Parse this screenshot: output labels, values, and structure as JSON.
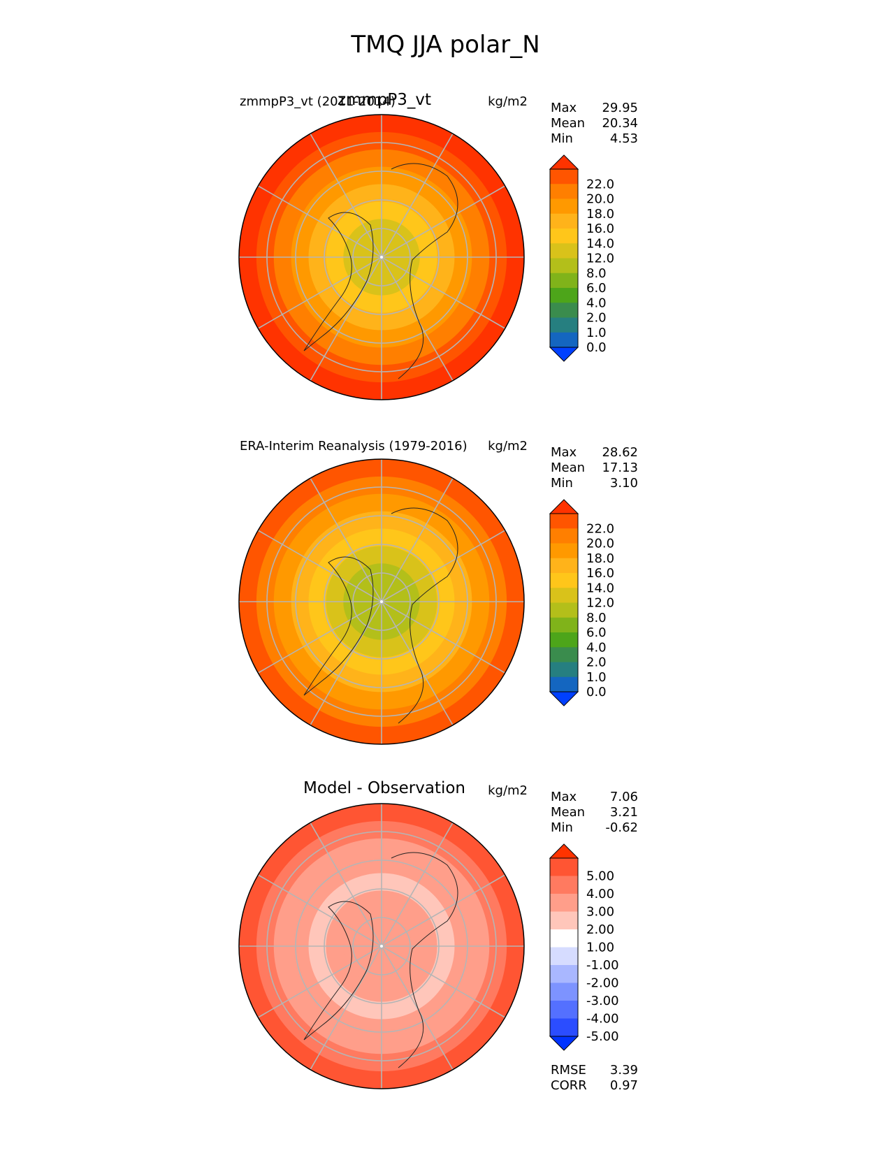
{
  "figure": {
    "title": "TMQ JJA polar_N"
  },
  "chart_data": [
    {
      "type": "heatmap",
      "projection": "north-polar-stereographic",
      "title_center": "zmmpP3_vt",
      "title_left": "zmmpP3_vt (2011-2014)",
      "units": "kg/m2",
      "stats": [
        {
          "label": "Max",
          "value": "29.95"
        },
        {
          "label": "Mean",
          "value": "20.34"
        },
        {
          "label": "Min",
          "value": "4.53"
        }
      ],
      "colorbar": {
        "extend": "both",
        "tick_labels": [
          "22.0",
          "20.0",
          "18.0",
          "16.0",
          "14.0",
          "12.0",
          "8.0",
          "6.0",
          "4.0",
          "2.0",
          "1.0",
          "0.0"
        ],
        "colors": [
          "#ff3300",
          "#ff5500",
          "#ff7f00",
          "#ff9900",
          "#ffb31a",
          "#ffc61a",
          "#d9c21a",
          "#b3bf1a",
          "#80b31a",
          "#4da51a",
          "#3a8c4d",
          "#267f80",
          "#1466c0",
          "#0040ff"
        ]
      },
      "rings": [
        "#ff3300",
        "#ff5500",
        "#ff7f00",
        "#ff9900",
        "#ffb31a",
        "#ffc61a",
        "#d9c21a"
      ]
    },
    {
      "type": "heatmap",
      "projection": "north-polar-stereographic",
      "title_center": "",
      "title_left": "ERA-Interim Reanalysis (1979-2016)",
      "units": "kg/m2",
      "stats": [
        {
          "label": "Max",
          "value": "28.62"
        },
        {
          "label": "Mean",
          "value": "17.13"
        },
        {
          "label": "Min",
          "value": "3.10"
        }
      ],
      "colorbar": {
        "extend": "both",
        "tick_labels": [
          "22.0",
          "20.0",
          "18.0",
          "16.0",
          "14.0",
          "12.0",
          "8.0",
          "6.0",
          "4.0",
          "2.0",
          "1.0",
          "0.0"
        ],
        "colors": [
          "#ff3300",
          "#ff5500",
          "#ff7f00",
          "#ff9900",
          "#ffb31a",
          "#ffc61a",
          "#d9c21a",
          "#b3bf1a",
          "#80b31a",
          "#4da51a",
          "#3a8c4d",
          "#267f80",
          "#1466c0",
          "#0040ff"
        ]
      },
      "rings": [
        "#ff5500",
        "#ff7f00",
        "#ff9900",
        "#ffb31a",
        "#ffc61a",
        "#d9c21a",
        "#b3bf1a"
      ]
    },
    {
      "type": "heatmap",
      "projection": "north-polar-stereographic",
      "title_center": "Model - Observation",
      "title_left": "",
      "units": "kg/m2",
      "stats": [
        {
          "label": "Max",
          "value": "7.06"
        },
        {
          "label": "Mean",
          "value": "3.21"
        },
        {
          "label": "Min",
          "value": "-0.62"
        }
      ],
      "extra_stats": [
        {
          "label": "RMSE",
          "value": "3.39"
        },
        {
          "label": "CORR",
          "value": "0.97"
        }
      ],
      "colorbar": {
        "extend": "both",
        "tick_labels": [
          "5.00",
          "4.00",
          "3.00",
          "2.00",
          "1.00",
          "-1.00",
          "-2.00",
          "-3.00",
          "-4.00",
          "-5.00"
        ],
        "colors": [
          "#ff3300",
          "#ff5533",
          "#ff7a60",
          "#ff9e8a",
          "#ffc6ba",
          "#ffffff",
          "#d6dcff",
          "#a9b7ff",
          "#7d93ff",
          "#5470ff",
          "#2b4dff",
          "#0033ff"
        ]
      },
      "rings": [
        "#ff5533",
        "#ff7a60",
        "#ff9e8a",
        "#ff9e8a",
        "#ffc6ba",
        "#ff9e8a",
        "#ff9e8a"
      ]
    }
  ]
}
